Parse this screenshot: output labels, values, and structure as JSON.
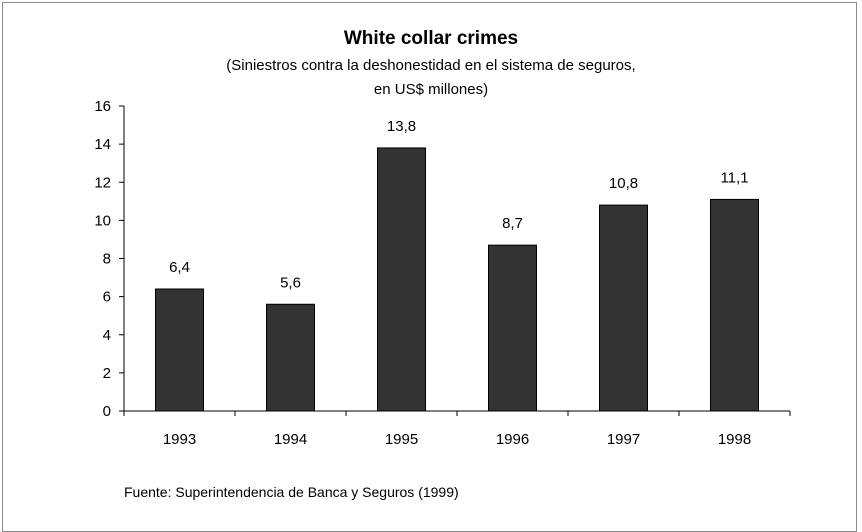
{
  "chart_data": {
    "type": "bar",
    "title": "White collar crimes",
    "subtitle_line1": "(Siniestros contra la deshonestidad en el sistema de seguros,",
    "subtitle_line2": "en US$ millones)",
    "categories": [
      "1993",
      "1994",
      "1995",
      "1996",
      "1997",
      "1998"
    ],
    "values": [
      6.4,
      5.6,
      13.8,
      8.7,
      10.8,
      11.1
    ],
    "value_labels": [
      "6,4",
      "5,6",
      "13,8",
      "8,7",
      "10,8",
      "11,1"
    ],
    "ylim": [
      0,
      16
    ],
    "yticks": [
      0,
      2,
      4,
      6,
      8,
      10,
      12,
      14,
      16
    ],
    "grid": false,
    "bar_color": "#333333",
    "source": "Fuente: Superintendencia de Banca y Seguros (1999)"
  }
}
